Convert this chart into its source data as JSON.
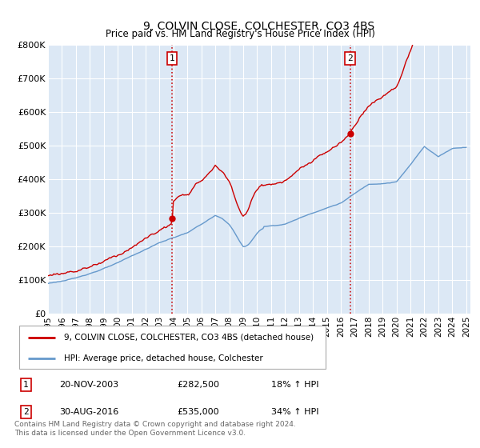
{
  "title": "9, COLVIN CLOSE, COLCHESTER, CO3 4BS",
  "subtitle": "Price paid vs. HM Land Registry's House Price Index (HPI)",
  "hpi_label": "HPI: Average price, detached house, Colchester",
  "property_label": "9, COLVIN CLOSE, COLCHESTER, CO3 4BS (detached house)",
  "footer": "Contains HM Land Registry data © Crown copyright and database right 2024.\nThis data is licensed under the Open Government Licence v3.0.",
  "sale1_date": "20-NOV-2003",
  "sale1_price": "£282,500",
  "sale1_hpi": "18% ↑ HPI",
  "sale2_date": "30-AUG-2016",
  "sale2_price": "£535,000",
  "sale2_hpi": "34% ↑ HPI",
  "sale1_year": 2003.9,
  "sale1_value": 282500,
  "sale2_year": 2016.67,
  "sale2_value": 535000,
  "property_color": "#cc0000",
  "hpi_color": "#6699cc",
  "bg_color": "#dce8f5",
  "plot_bg": "#ffffff",
  "ylim": [
    0,
    800000
  ],
  "xlim_start": 1995.0,
  "xlim_end": 2025.3,
  "yticks": [
    0,
    100000,
    200000,
    300000,
    400000,
    500000,
    600000,
    700000,
    800000
  ],
  "ytick_labels": [
    "£0",
    "£100K",
    "£200K",
    "£300K",
    "£400K",
    "£500K",
    "£600K",
    "£700K",
    "£800K"
  ],
  "xticks": [
    1995,
    1996,
    1997,
    1998,
    1999,
    2000,
    2001,
    2002,
    2003,
    2004,
    2005,
    2006,
    2007,
    2008,
    2009,
    2010,
    2011,
    2012,
    2013,
    2014,
    2015,
    2016,
    2017,
    2018,
    2019,
    2020,
    2021,
    2022,
    2023,
    2024,
    2025
  ]
}
